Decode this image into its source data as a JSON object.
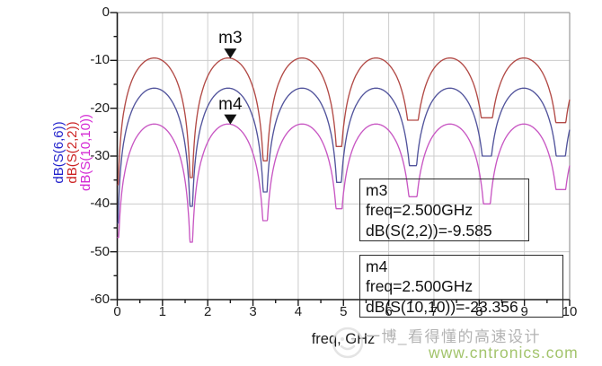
{
  "chart_data": {
    "type": "line",
    "title": "",
    "xlabel": "freq, GHz",
    "xlim": [
      0,
      10
    ],
    "ylim": [
      -60,
      0
    ],
    "x_tick_labels": [
      "0",
      "1",
      "2",
      "3",
      "4",
      "5",
      "6",
      "7",
      "8",
      "9",
      "10"
    ],
    "y_tick_labels": [
      "0",
      "-10",
      "-20",
      "-30",
      "-40",
      "-50",
      "-60"
    ],
    "x_major_step_GHz": 1,
    "x_minor_step_GHz": 0.5,
    "y_major_step_dB": 10,
    "y_minor_step_dB": 5,
    "grid": true,
    "grid_color": "#cccccc",
    "frame_color": "#999999",
    "axis_color": "#1a1a1a",
    "null_spacing_GHz": 1.634,
    "series": [
      {
        "name": "dB(S(10,10))",
        "curve_color": "#c857c3",
        "peak_dB": -23.3,
        "null_floors_dB": [
          -47,
          -48,
          -43.5,
          -41,
          -38.5,
          -40,
          -37
        ]
      },
      {
        "name": "dB(S(6,6))",
        "curve_color": "#52549c",
        "peak_dB": -15.8,
        "null_floors_dB": [
          -44,
          -40.5,
          -37.5,
          -35.5,
          -32,
          -30,
          -30
        ]
      },
      {
        "name": "dB(S(2,2))",
        "curve_color": "#b24a46",
        "peak_dB": -9.5,
        "null_floors_dB": [
          -36,
          -34.5,
          -31,
          -28,
          -22.5,
          -22,
          -23
        ]
      }
    ],
    "markers": [
      {
        "id": "m3",
        "freq_GHz": 2.5,
        "value_dB": -9.585,
        "series": "dB(S(2,2))"
      },
      {
        "id": "m4",
        "freq_GHz": 2.5,
        "value_dB": -23.356,
        "series": "dB(S(10,10))"
      }
    ],
    "legend_position": "left-axis-rotated"
  },
  "y_axis_labels": [
    {
      "text": "dB(S(6,6))",
      "color": "#2222cc"
    },
    {
      "text": "dB(S(2,2))",
      "color": "#cc2222"
    },
    {
      "text": "dB(S(10,10))",
      "color": "#d428d4"
    }
  ],
  "axis": {
    "xlabel": "freq, GHz"
  },
  "annotations": {
    "m3": {
      "title": "m3",
      "freq_line": "freq=2.500GHz",
      "value_line": "dB(S(2,2))=-9.585"
    },
    "m4": {
      "title": "m4",
      "freq_line": "freq=2.500GHz",
      "value_line": "dB(S(10,10))=-23.356"
    }
  },
  "watermark": {
    "title": "一博_看得懂的高速设计",
    "url": "www.cntronics.com",
    "title_color": "#b3b3b3",
    "url_color": "#a3c46c",
    "logo_icon": "smiley-logo"
  }
}
